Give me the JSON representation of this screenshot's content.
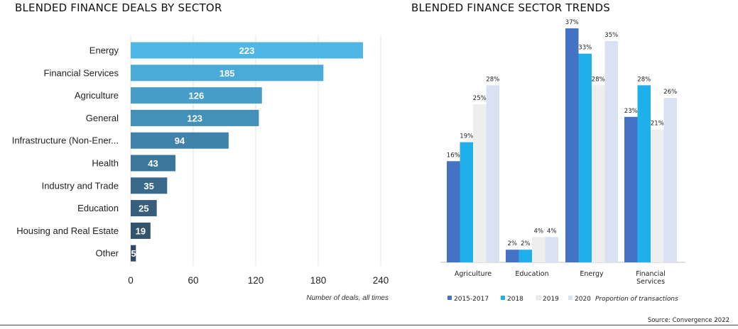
{
  "chart_data": [
    {
      "type": "bar",
      "orientation": "horizontal",
      "title": "BLENDED FINANCE DEALS BY SECTOR",
      "xlabel": "Number of deals, all times",
      "categories": [
        "Energy",
        "Financial Services",
        "Agriculture",
        "General",
        "Infrastructure (Non-Ener...",
        "Health",
        "Industry and Trade",
        "Education",
        "Housing and Real Estate",
        "Other"
      ],
      "values": [
        223,
        185,
        126,
        123,
        94,
        43,
        35,
        25,
        19,
        5
      ],
      "value_labels": [
        "223",
        "185",
        "126",
        "123",
        "94",
        "43",
        "35",
        "25",
        "19",
        "5"
      ],
      "xlim": [
        0,
        240
      ],
      "xticks": [
        "0",
        "60",
        "120",
        "180",
        "240"
      ],
      "grid": true,
      "bar_colors": [
        "#4fb7e6",
        "#4aaad8",
        "#469dc8",
        "#4390b9",
        "#3f82aa",
        "#3c769b",
        "#396a8c",
        "#375f7d",
        "#34546e",
        "#324a62"
      ]
    },
    {
      "type": "bar",
      "title": "BLENDED FINANCE SECTOR TRENDS",
      "categories": [
        "Agriculture",
        "Education",
        "Energy",
        "Financial Services"
      ],
      "category_labels": [
        [
          "Agriculture"
        ],
        [
          "Education"
        ],
        [
          "Energy"
        ],
        [
          "Financial",
          "Services"
        ]
      ],
      "series": [
        {
          "name": "2015-2017",
          "values": [
            16,
            2,
            37,
            23
          ],
          "labels": [
            "16%",
            "2%",
            "37%",
            "23%"
          ],
          "color": "#4472c4"
        },
        {
          "name": "2018",
          "values": [
            19,
            2,
            33,
            28
          ],
          "labels": [
            "19%",
            "2%",
            "33%",
            "28%"
          ],
          "color": "#1fb0ec"
        },
        {
          "name": "2019",
          "values": [
            25,
            4,
            28,
            21
          ],
          "labels": [
            "25%",
            "4%",
            "28%",
            "21%"
          ],
          "color": "#eeeeee"
        },
        {
          "name": "2020",
          "values": [
            28,
            4,
            35,
            26
          ],
          "labels": [
            "28%",
            "4%",
            "35%",
            "26%"
          ],
          "color": "#d9e1f2"
        }
      ],
      "legend_note": "Proportion of transactions",
      "legend_position": "bottom",
      "ylim": [
        0,
        37
      ]
    }
  ],
  "source": "Source: Convergence 2022"
}
